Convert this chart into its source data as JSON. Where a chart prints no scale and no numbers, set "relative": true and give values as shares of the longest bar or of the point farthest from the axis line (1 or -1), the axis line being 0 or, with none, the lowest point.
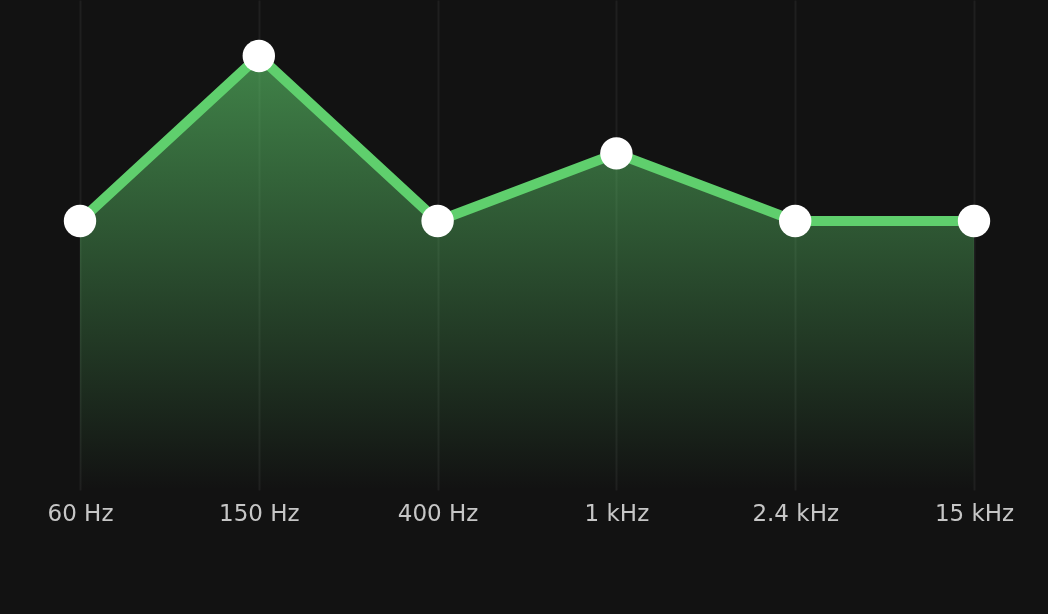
{
  "chart_data": {
    "type": "area",
    "categories": [
      "60 Hz",
      "150 Hz",
      "400 Hz",
      "1 kHz",
      "2.4 kHz",
      "15 kHz"
    ],
    "series": [
      {
        "color": "#5fcf6d",
        "values": [
          0,
          1,
          0,
          0.41,
          0,
          0
        ]
      }
    ],
    "relative": true,
    "grid": "x",
    "marker": "circle",
    "line_style": "solid"
  }
}
